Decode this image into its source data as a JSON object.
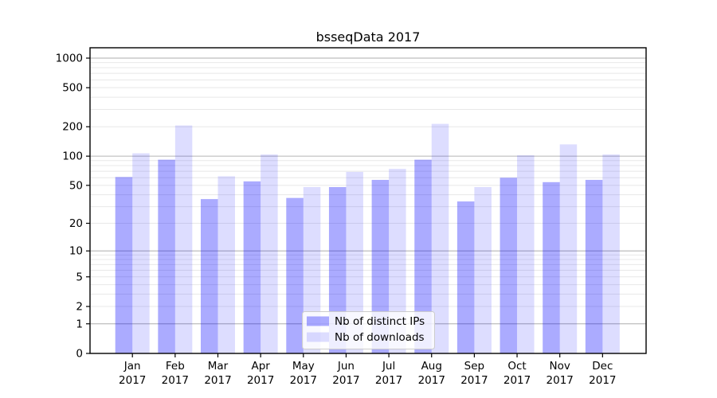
{
  "chart_data": {
    "type": "bar",
    "title": "bsseqData 2017",
    "xlabel": "",
    "ylabel": "",
    "scale": "log1p",
    "ylim": [
      0,
      1000
    ],
    "y_ticks": [
      0,
      1,
      2,
      5,
      10,
      20,
      50,
      100,
      200,
      500,
      1000
    ],
    "grid": {
      "major_values": [
        1,
        10,
        100,
        1000
      ],
      "minor_base_values": [
        2,
        3,
        4,
        5,
        6,
        7,
        8,
        9
      ],
      "minor_decades": [
        1,
        10,
        100
      ]
    },
    "categories": [
      "Jan",
      "Feb",
      "Mar",
      "Apr",
      "May",
      "Jun",
      "Jul",
      "Aug",
      "Sep",
      "Oct",
      "Nov",
      "Dec"
    ],
    "category_year": "2017",
    "series": [
      {
        "name": "Nb of distinct IPs",
        "color": "rgba(0,0,255,0.33)",
        "values": [
          61,
          92,
          36,
          55,
          37,
          48,
          57,
          92,
          34,
          60,
          54,
          57
        ]
      },
      {
        "name": "Nb of downloads",
        "color": "rgba(0,0,255,0.135)",
        "values": [
          107,
          206,
          62,
          104,
          48,
          69,
          74,
          214,
          48,
          102,
          132,
          104
        ]
      }
    ],
    "legend_position": "lower center"
  },
  "colors": {
    "background": "#ffffff",
    "spine": "#000000",
    "grid_major": "#bdbdbd",
    "grid_minor": "#e8e8e8",
    "legend_border": "#cccccc",
    "legend_background": "rgba(255,255,255,0.8)"
  }
}
